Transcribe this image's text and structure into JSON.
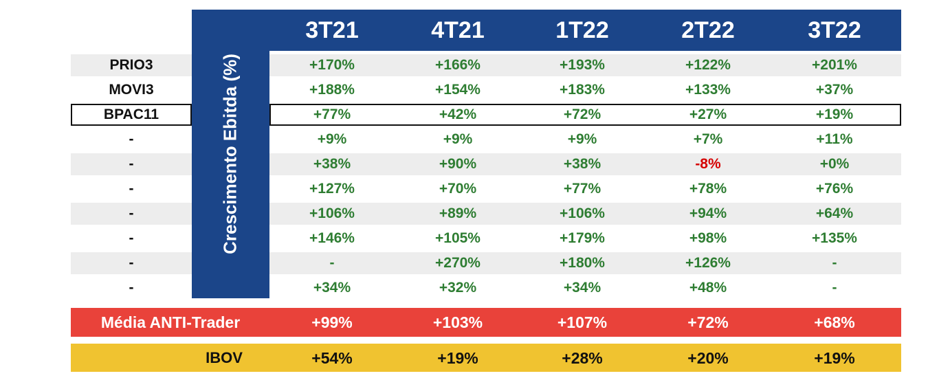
{
  "chart_data": {
    "type": "table",
    "title": "Crescimento Ebitda (%)",
    "columns": [
      "3T21",
      "4T21",
      "1T22",
      "2T22",
      "3T22"
    ],
    "rows": [
      {
        "label": "PRIO3",
        "values": [
          "+170%",
          "+166%",
          "+193%",
          "+122%",
          "+201%"
        ]
      },
      {
        "label": "MOVI3",
        "values": [
          "+188%",
          "+154%",
          "+183%",
          "+133%",
          "+37%"
        ]
      },
      {
        "label": "BPAC11",
        "values": [
          "+77%",
          "+42%",
          "+72%",
          "+27%",
          "+19%"
        ]
      },
      {
        "label": "-",
        "values": [
          "+9%",
          "+9%",
          "+9%",
          "+7%",
          "+11%"
        ]
      },
      {
        "label": "-",
        "values": [
          "+38%",
          "+90%",
          "+38%",
          "-8%",
          "+0%"
        ]
      },
      {
        "label": "-",
        "values": [
          "+127%",
          "+70%",
          "+77%",
          "+78%",
          "+76%"
        ]
      },
      {
        "label": "-",
        "values": [
          "+106%",
          "+89%",
          "+106%",
          "+94%",
          "+64%"
        ]
      },
      {
        "label": "-",
        "values": [
          "+146%",
          "+105%",
          "+179%",
          "+98%",
          "+135%"
        ]
      },
      {
        "label": "-",
        "values": [
          "-",
          "+270%",
          "+180%",
          "+126%",
          "-"
        ]
      },
      {
        "label": "-",
        "values": [
          "+34%",
          "+32%",
          "+34%",
          "+48%",
          "-"
        ]
      }
    ],
    "highlighted_row": "BPAC11",
    "summary_rows": [
      {
        "label": "Média ANTI-Trader",
        "values": [
          "+99%",
          "+103%",
          "+107%",
          "+72%",
          "+68%"
        ],
        "color": "#e9423a"
      },
      {
        "label": "IBOV",
        "values": [
          "+54%",
          "+19%",
          "+28%",
          "+20%",
          "+19%"
        ],
        "color": "#f0c330"
      }
    ]
  },
  "colors": {
    "header_blue": "#1b4589",
    "positive": "#2e7d32",
    "negative": "#d50000",
    "stripe": "#ededed",
    "summary_text_red_band": "#ffffff",
    "summary_text_yellow_band": "#111111"
  }
}
